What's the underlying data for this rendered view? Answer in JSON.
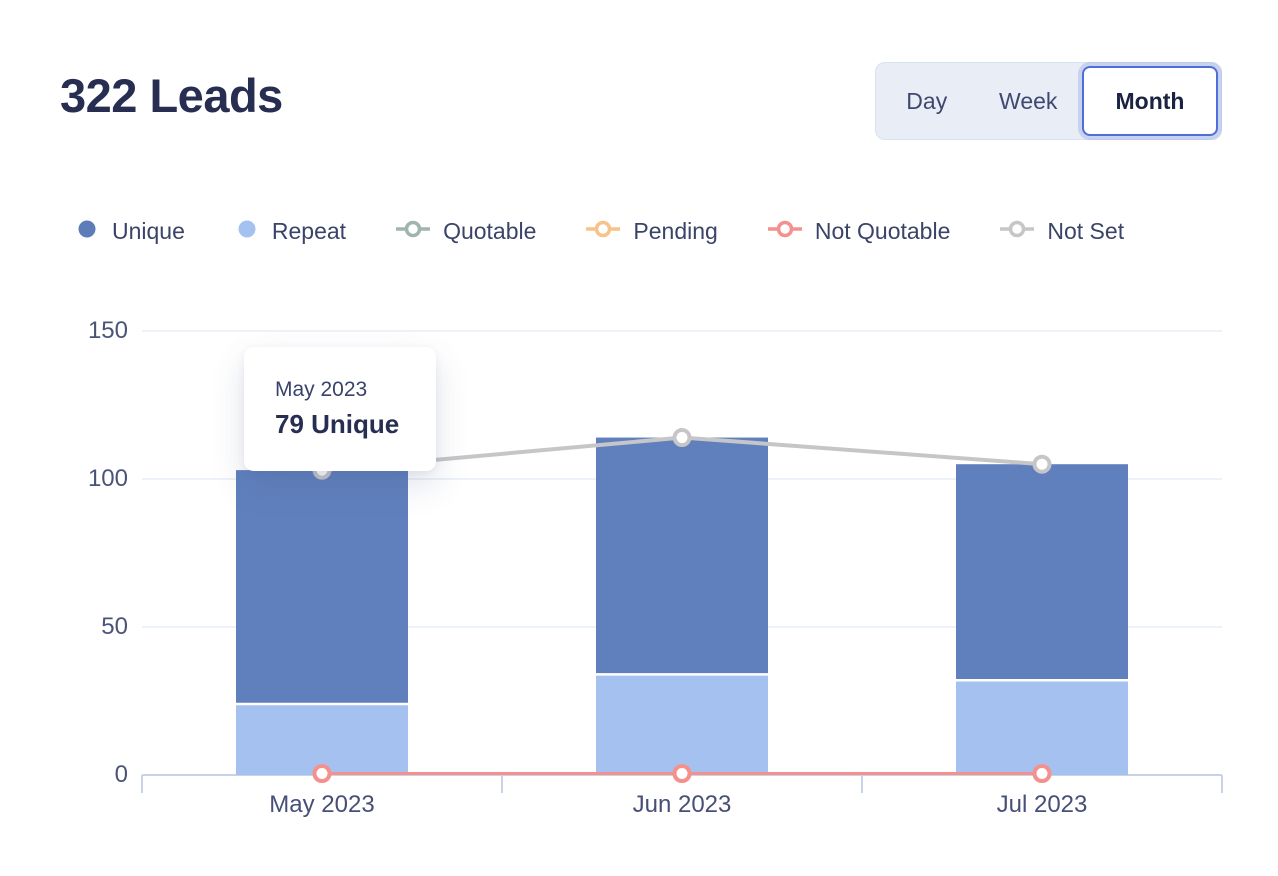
{
  "header": {
    "title": "322 Leads"
  },
  "range_toggle": {
    "options": [
      {
        "label": "Day",
        "selected": false
      },
      {
        "label": "Week",
        "selected": false
      },
      {
        "label": "Month",
        "selected": true
      }
    ]
  },
  "legend": [
    {
      "label": "Unique",
      "marker": "dot",
      "color": "#5d7cba"
    },
    {
      "label": "Repeat",
      "marker": "dot",
      "color": "#a5c1ef"
    },
    {
      "label": "Quotable",
      "marker": "line-circle",
      "color": "#a0b5b0"
    },
    {
      "label": "Pending",
      "marker": "line-circle",
      "color": "#f6c489"
    },
    {
      "label": "Not Quotable",
      "marker": "line-circle",
      "color": "#f4918f"
    },
    {
      "label": "Not Set",
      "marker": "line-circle",
      "color": "#c6c6c8"
    }
  ],
  "tooltip": {
    "title": "May 2023",
    "value": "79 Unique"
  },
  "chart_data": {
    "type": "bar",
    "subtype": "stacked-bars-with-line-overlays",
    "categories": [
      "May 2023",
      "Jun 2023",
      "Jul 2023"
    ],
    "bar_series": [
      {
        "name": "Repeat",
        "values": [
          24,
          34,
          32
        ],
        "color": "#a5c1ef"
      },
      {
        "name": "Unique",
        "values": [
          79,
          80,
          73
        ],
        "color": "#6080bd"
      }
    ],
    "line_series": [
      {
        "name": "Quotable",
        "values": [
          0,
          0,
          0
        ],
        "color": "#a0b5b0",
        "visible": false
      },
      {
        "name": "Pending",
        "values": [
          0,
          0,
          0
        ],
        "color": "#f6c489",
        "visible": false
      },
      {
        "name": "Not Quotable",
        "values": [
          0,
          0,
          0
        ],
        "color": "#f4918f",
        "visible": true
      },
      {
        "name": "Not Set",
        "values": [
          103,
          114,
          105
        ],
        "color": "#c6c6c8",
        "visible": true
      }
    ],
    "yticks": [
      0,
      50,
      100,
      150
    ],
    "ylim": [
      0,
      150
    ],
    "grid": "horizontal",
    "legend_position": "top",
    "title": "322 Leads"
  }
}
